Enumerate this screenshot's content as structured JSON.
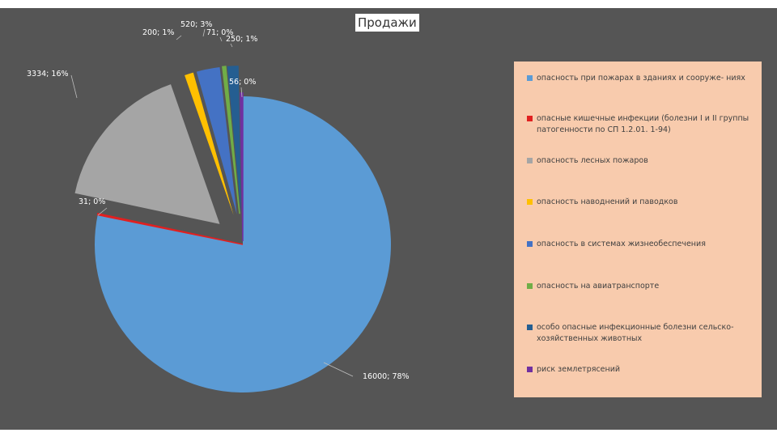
{
  "chart_data": {
    "type": "pie",
    "exploded": true,
    "title": "Продажи",
    "legend_position": "right",
    "series": [
      {
        "name": "опасность при пожарах в зданиях и сооруже- ниях",
        "value": 16000,
        "percent": "78%",
        "label": "16000; 78%",
        "color": "#5b9bd5"
      },
      {
        "name": "опасные кишечные инфекции (болезни I и II группы патогенности по СП 1.2.01. 1-94)",
        "value": 31,
        "percent": "0%",
        "label": "31; 0%",
        "color": "#e02020"
      },
      {
        "name": "опасность лесных пожаров",
        "value": 3334,
        "percent": "16%",
        "label": "3334; 16%",
        "color": "#a5a5a5"
      },
      {
        "name": "опасность наводнений и паводков",
        "value": 200,
        "percent": "1%",
        "label": "200; 1%",
        "color": "#ffc000"
      },
      {
        "name": "опасность в системах жизнеобеспечения",
        "value": 520,
        "percent": "3%",
        "label": "520; 3%",
        "color": "#4472c4"
      },
      {
        "name": "опасность на авиатранспорте",
        "value": 71,
        "percent": "0%",
        "label": "71; 0%",
        "color": "#70ad47"
      },
      {
        "name": "особо опасные инфекционные болезни сельско- хозяйственных животных",
        "value": 250,
        "percent": "1%",
        "label": "250; 1%",
        "color": "#255e91"
      },
      {
        "name": "риск землетрясений",
        "value": 56,
        "percent": "0%",
        "label": "56; 0%",
        "color": "#7030a0"
      }
    ]
  }
}
